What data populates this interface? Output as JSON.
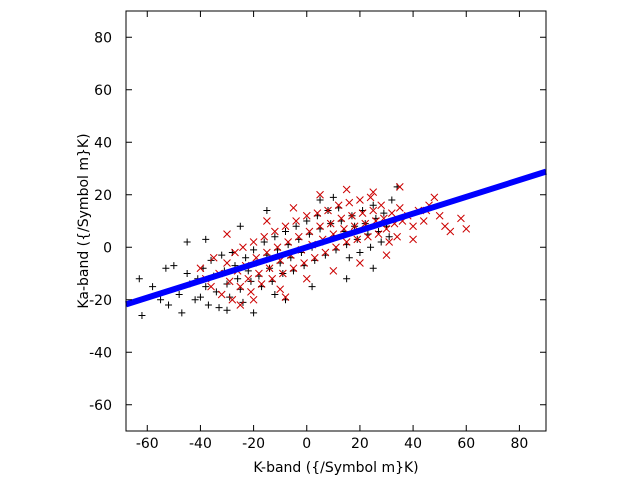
{
  "chart_data": {
    "type": "scatter",
    "xlabel": "K-band ({/Symbol m}K)",
    "ylabel": "Ka-band ({/Symbol m}K)",
    "xlim": [
      -68,
      90
    ],
    "ylim": [
      -70,
      90
    ],
    "x_ticks": [
      -60,
      -40,
      -20,
      0,
      20,
      40,
      60,
      80
    ],
    "y_ticks": [
      -60,
      -40,
      -20,
      0,
      20,
      40,
      60,
      80
    ],
    "grid": false,
    "legend": "none",
    "fit_line": {
      "slope": 0.32,
      "intercept": 0.0,
      "x_range": [
        -68,
        90
      ],
      "color": "#0000ff"
    },
    "series": [
      {
        "marker": "plus",
        "color": "#000000",
        "points": [
          [
            -63,
            -12
          ],
          [
            -62,
            -26
          ],
          [
            -58,
            -15
          ],
          [
            -55,
            -20
          ],
          [
            -52,
            -22
          ],
          [
            -50,
            -7
          ],
          [
            -48,
            -18
          ],
          [
            -47,
            -25
          ],
          [
            -45,
            -10
          ],
          [
            -44,
            -14
          ],
          [
            -42,
            -20
          ],
          [
            -41,
            -12
          ],
          [
            -40,
            -19
          ],
          [
            -39,
            -8
          ],
          [
            -38,
            -15
          ],
          [
            -37,
            -22
          ],
          [
            -36,
            -5
          ],
          [
            -35,
            -11
          ],
          [
            -34,
            -17
          ],
          [
            -33,
            -23
          ],
          [
            -32,
            -3
          ],
          [
            -31,
            -9
          ],
          [
            -30,
            -14
          ],
          [
            -29,
            -19
          ],
          [
            -28,
            -2
          ],
          [
            -27,
            -7
          ],
          [
            -26,
            -12
          ],
          [
            -25,
            -16
          ],
          [
            -24,
            -21
          ],
          [
            -23,
            -4
          ],
          [
            -22,
            -9
          ],
          [
            -21,
            -13
          ],
          [
            -20,
            -1
          ],
          [
            -19,
            -6
          ],
          [
            -18,
            -11
          ],
          [
            -17,
            -15
          ],
          [
            -16,
            2
          ],
          [
            -15,
            -3
          ],
          [
            -14,
            -8
          ],
          [
            -13,
            -13
          ],
          [
            -12,
            4
          ],
          [
            -11,
            -1
          ],
          [
            -10,
            -6
          ],
          [
            -9,
            -10
          ],
          [
            -8,
            6
          ],
          [
            -7,
            1
          ],
          [
            -6,
            -4
          ],
          [
            -5,
            -9
          ],
          [
            -4,
            8
          ],
          [
            -3,
            3
          ],
          [
            -2,
            -2
          ],
          [
            -1,
            -7
          ],
          [
            0,
            10
          ],
          [
            1,
            5
          ],
          [
            2,
            0
          ],
          [
            3,
            -5
          ],
          [
            4,
            12
          ],
          [
            5,
            7
          ],
          [
            6,
            2
          ],
          [
            7,
            -3
          ],
          [
            8,
            14
          ],
          [
            9,
            9
          ],
          [
            10,
            4
          ],
          [
            11,
            -1
          ],
          [
            12,
            15
          ],
          [
            13,
            10
          ],
          [
            14,
            6
          ],
          [
            15,
            1
          ],
          [
            16,
            -4
          ],
          [
            17,
            12
          ],
          [
            18,
            8
          ],
          [
            19,
            3
          ],
          [
            20,
            -2
          ],
          [
            21,
            14
          ],
          [
            22,
            9
          ],
          [
            23,
            5
          ],
          [
            24,
            0
          ],
          [
            25,
            16
          ],
          [
            26,
            11
          ],
          [
            27,
            6
          ],
          [
            28,
            2
          ],
          [
            29,
            13
          ],
          [
            30,
            8
          ],
          [
            31,
            4
          ],
          [
            32,
            18
          ],
          [
            34,
            23
          ],
          [
            -45,
            2
          ],
          [
            -53,
            -8
          ],
          [
            -30,
            -24
          ],
          [
            -12,
            -18
          ],
          [
            2,
            -15
          ],
          [
            15,
            -12
          ],
          [
            25,
            -8
          ],
          [
            -38,
            3
          ],
          [
            -20,
            -25
          ],
          [
            -8,
            -20
          ],
          [
            5,
            18
          ],
          [
            -15,
            14
          ],
          [
            10,
            19
          ],
          [
            -25,
            8
          ]
        ]
      },
      {
        "marker": "cross",
        "color": "#cc0000",
        "points": [
          [
            -40,
            -8
          ],
          [
            -38,
            -12
          ],
          [
            -36,
            -15
          ],
          [
            -35,
            -4
          ],
          [
            -33,
            -10
          ],
          [
            -32,
            -18
          ],
          [
            -30,
            -6
          ],
          [
            -29,
            -13
          ],
          [
            -28,
            -20
          ],
          [
            -27,
            -2
          ],
          [
            -26,
            -9
          ],
          [
            -25,
            -15
          ],
          [
            -24,
            0
          ],
          [
            -23,
            -7
          ],
          [
            -22,
            -12
          ],
          [
            -21,
            -17
          ],
          [
            -20,
            2
          ],
          [
            -19,
            -4
          ],
          [
            -18,
            -10
          ],
          [
            -17,
            -14
          ],
          [
            -16,
            4
          ],
          [
            -15,
            -2
          ],
          [
            -14,
            -8
          ],
          [
            -13,
            -12
          ],
          [
            -12,
            6
          ],
          [
            -11,
            0
          ],
          [
            -10,
            -5
          ],
          [
            -9,
            -10
          ],
          [
            -8,
            8
          ],
          [
            -7,
            2
          ],
          [
            -6,
            -3
          ],
          [
            -5,
            -8
          ],
          [
            -4,
            10
          ],
          [
            -3,
            4
          ],
          [
            -2,
            -1
          ],
          [
            -1,
            -6
          ],
          [
            0,
            12
          ],
          [
            1,
            6
          ],
          [
            2,
            1
          ],
          [
            3,
            -4
          ],
          [
            4,
            13
          ],
          [
            5,
            8
          ],
          [
            6,
            3
          ],
          [
            7,
            -2
          ],
          [
            8,
            14
          ],
          [
            9,
            9
          ],
          [
            10,
            5
          ],
          [
            11,
            0
          ],
          [
            12,
            16
          ],
          [
            13,
            11
          ],
          [
            14,
            7
          ],
          [
            15,
            2
          ],
          [
            16,
            17
          ],
          [
            17,
            12
          ],
          [
            18,
            8
          ],
          [
            19,
            3
          ],
          [
            20,
            18
          ],
          [
            21,
            13
          ],
          [
            22,
            9
          ],
          [
            23,
            4
          ],
          [
            24,
            19
          ],
          [
            25,
            14
          ],
          [
            26,
            10
          ],
          [
            27,
            5
          ],
          [
            28,
            16
          ],
          [
            29,
            11
          ],
          [
            30,
            7
          ],
          [
            31,
            2
          ],
          [
            32,
            13
          ],
          [
            33,
            9
          ],
          [
            34,
            4
          ],
          [
            35,
            15
          ],
          [
            36,
            10
          ],
          [
            38,
            12
          ],
          [
            40,
            8
          ],
          [
            42,
            14
          ],
          [
            44,
            10
          ],
          [
            46,
            16
          ],
          [
            48,
            19
          ],
          [
            50,
            12
          ],
          [
            52,
            8
          ],
          [
            54,
            6
          ],
          [
            58,
            11
          ],
          [
            60,
            7
          ],
          [
            -20,
            -20
          ],
          [
            -10,
            -16
          ],
          [
            0,
            -12
          ],
          [
            10,
            -9
          ],
          [
            20,
            -6
          ],
          [
            30,
            -3
          ],
          [
            -5,
            15
          ],
          [
            5,
            20
          ],
          [
            15,
            22
          ],
          [
            25,
            21
          ],
          [
            35,
            23
          ],
          [
            -30,
            5
          ],
          [
            -15,
            10
          ],
          [
            -25,
            -22
          ],
          [
            40,
            3
          ],
          [
            45,
            14
          ],
          [
            -8,
            -19
          ]
        ]
      }
    ]
  }
}
